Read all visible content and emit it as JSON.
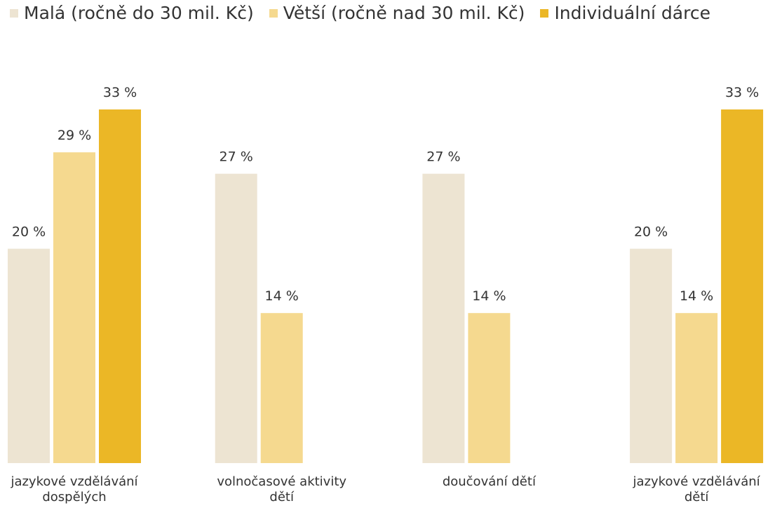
{
  "chart_data": {
    "type": "bar",
    "categories": [
      "jazykové vzdělávání dospělých",
      "volnočasové aktivity dětí",
      "doučování dětí",
      "jazykové vzdělávání dětí"
    ],
    "series": [
      {
        "name": "Malá (ročně do 30 mil. Kč)",
        "color": "#ede4d2",
        "values": [
          20,
          27,
          27,
          20
        ],
        "value_labels": [
          "20 %",
          "27 %",
          "27 %",
          "20 %"
        ]
      },
      {
        "name": "Větší (ročně nad 30 mil. Kč)",
        "color": "#f5d98f",
        "values": [
          29,
          14,
          14,
          14
        ],
        "value_labels": [
          "29 %",
          "14 %",
          "14 %",
          "14 %"
        ]
      },
      {
        "name": "Individuální dárce",
        "color": "#ebb726",
        "values": [
          33,
          null,
          null,
          33
        ],
        "value_labels": [
          "33 %",
          null,
          null,
          "33 %"
        ]
      }
    ],
    "ylim": [
      0,
      33
    ],
    "legend": "top"
  }
}
